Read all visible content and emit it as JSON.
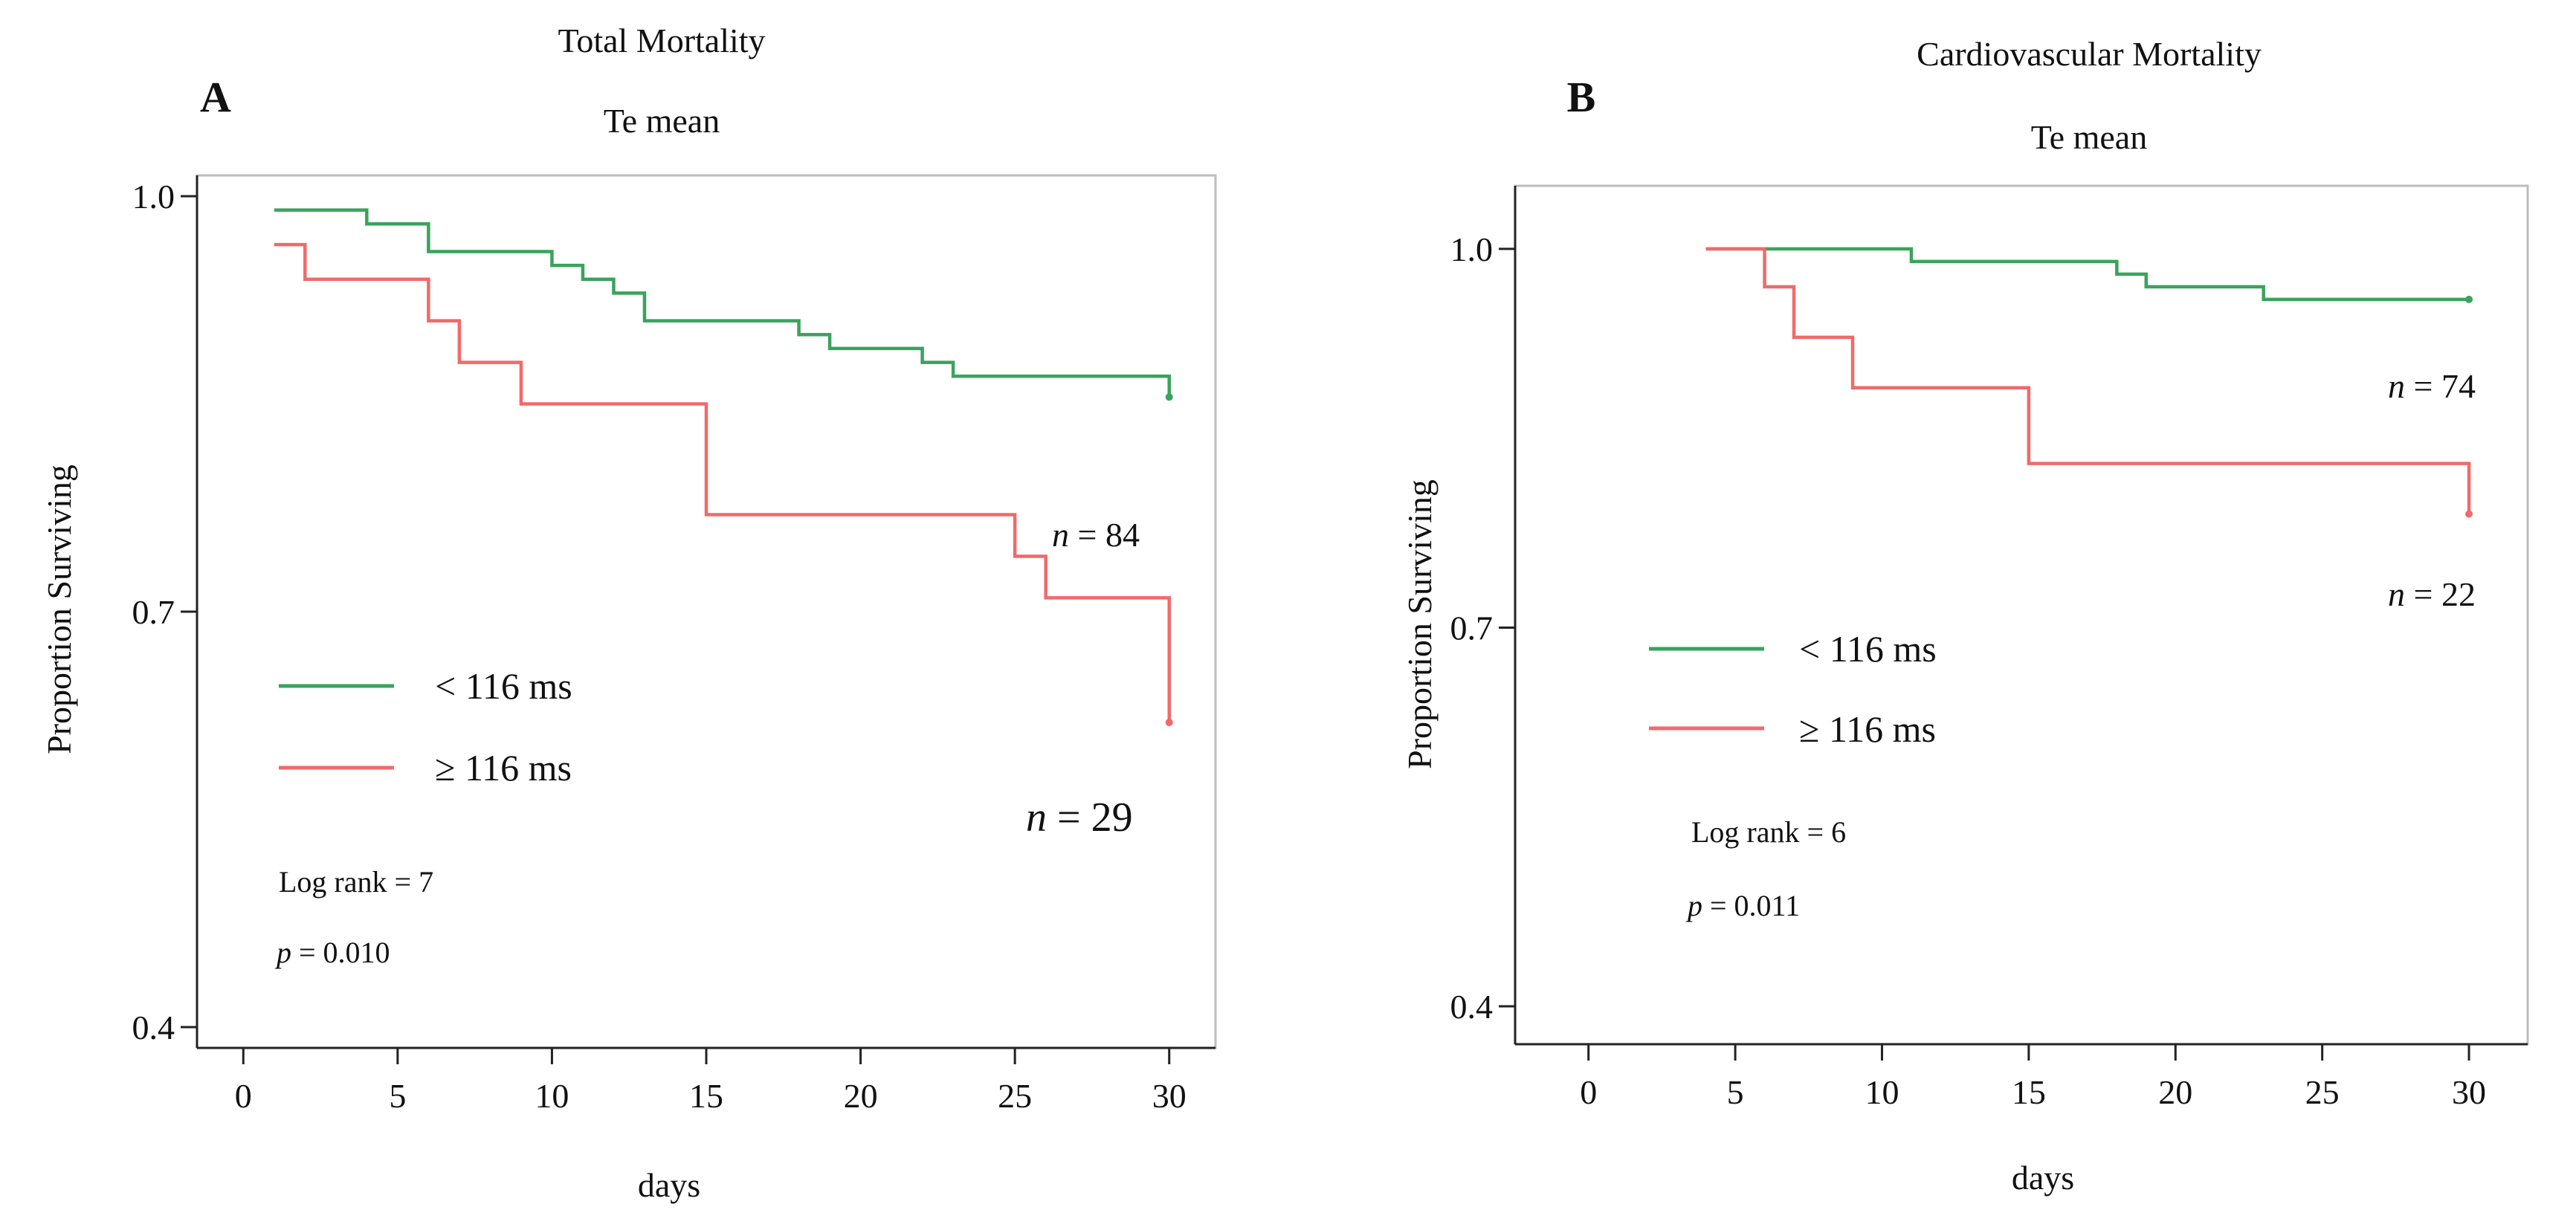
{
  "colors": {
    "low": "#3aa35c",
    "high": "#f06a6a",
    "axis": "#222222",
    "frame": "#bdbdbd"
  },
  "chart_data": [
    {
      "type": "line",
      "panel_label": "A",
      "title": "Total Mortality",
      "subtitle": "Te mean",
      "xlabel": "days",
      "ylabel": "Proportion Surviving",
      "xlim": [
        -1.5,
        31.5
      ],
      "ylim": [
        0.385,
        1.015
      ],
      "x_ticks": [
        0,
        5,
        10,
        15,
        20,
        25,
        30
      ],
      "y_ticks": [
        0.4,
        0.7,
        1.0
      ],
      "y_tick_labels": [
        "0.4",
        "0.7",
        "1.0"
      ],
      "series": [
        {
          "name": "< 116 ms",
          "color_key": "low",
          "steps": [
            [
              1,
              0.99
            ],
            [
              4,
              0.98
            ],
            [
              6,
              0.96
            ],
            [
              10,
              0.95
            ],
            [
              11,
              0.94
            ],
            [
              12,
              0.93
            ],
            [
              13,
              0.91
            ],
            [
              18,
              0.9
            ],
            [
              19,
              0.89
            ],
            [
              22,
              0.88
            ],
            [
              23,
              0.87
            ],
            [
              30,
              0.87
            ],
            [
              30,
              0.855
            ]
          ],
          "n_label": "n = 84"
        },
        {
          "name": "≥ 116 ms",
          "color_key": "high",
          "steps": [
            [
              1,
              0.965
            ],
            [
              2,
              0.94
            ],
            [
              6,
              0.91
            ],
            [
              7,
              0.88
            ],
            [
              9,
              0.85
            ],
            [
              15,
              0.77
            ],
            [
              25,
              0.74
            ],
            [
              26,
              0.71
            ],
            [
              30,
              0.71
            ],
            [
              30,
              0.62
            ]
          ],
          "n_label": "n = 29"
        }
      ],
      "legend": [
        "< 116 ms",
        "≥ 116 ms"
      ],
      "annotations": [
        "Log rank = 7",
        "p = 0.010"
      ]
    },
    {
      "type": "line",
      "panel_label": "B",
      "title": "Cardiovascular  Mortality",
      "subtitle": "Te mean",
      "xlabel": "days",
      "ylabel": "Proportion Surviving",
      "xlim": [
        -2.5,
        32
      ],
      "ylim": [
        0.37,
        1.05
      ],
      "x_ticks": [
        0,
        5,
        10,
        15,
        20,
        25,
        30
      ],
      "y_ticks": [
        0.4,
        0.7,
        1.0
      ],
      "y_tick_labels": [
        "0.4",
        "0.7",
        "1.0"
      ],
      "series": [
        {
          "name": "< 116 ms",
          "color_key": "low",
          "steps": [
            [
              4,
              1.0
            ],
            [
              11,
              0.99
            ],
            [
              18,
              0.98
            ],
            [
              19,
              0.97
            ],
            [
              23,
              0.96
            ],
            [
              30,
              0.96
            ]
          ],
          "n_label": "n = 74"
        },
        {
          "name": "≥ 116 ms",
          "color_key": "high",
          "steps": [
            [
              4,
              1.0
            ],
            [
              6,
              0.97
            ],
            [
              7,
              0.93
            ],
            [
              9,
              0.89
            ],
            [
              15,
              0.83
            ],
            [
              30,
              0.83
            ],
            [
              30,
              0.79
            ]
          ],
          "n_label": "n = 22"
        }
      ],
      "legend": [
        "< 116 ms",
        "≥ 116 ms"
      ],
      "annotations": [
        "Log rank = 6",
        "p = 0.011"
      ]
    }
  ]
}
